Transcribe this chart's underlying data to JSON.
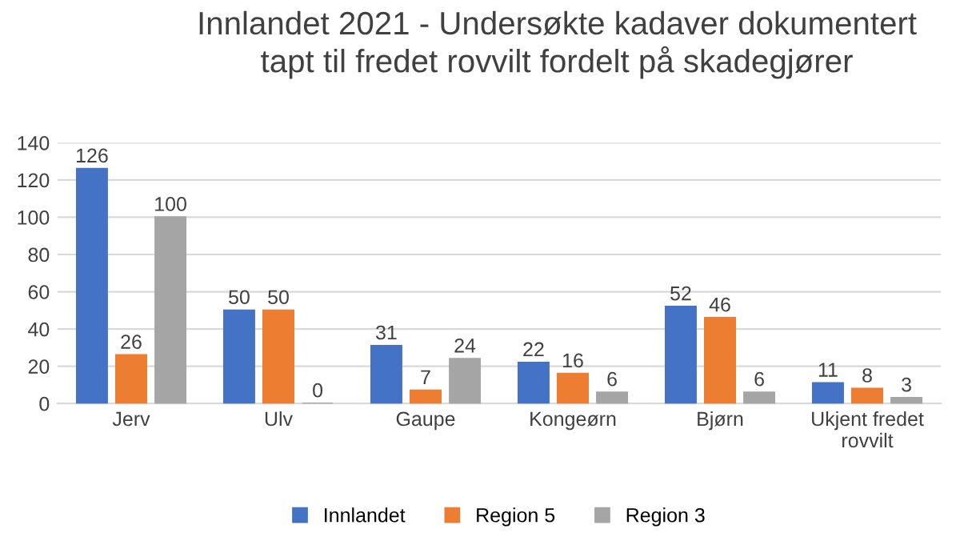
{
  "chart_data": {
    "type": "bar",
    "title": "Innlandet 2021 - Undersøkte kadaver dokumentert\ntapt til fredet rovvilt fordelt på skadegjører",
    "categories": [
      "Jerv",
      "Ulv",
      "Gaupe",
      "Kongeørn",
      "Bjørn",
      "Ukjent fredet\nrovvilt"
    ],
    "series": [
      {
        "name": "Innlandet",
        "color": "#4472c4",
        "values": [
          126,
          50,
          31,
          22,
          52,
          11
        ]
      },
      {
        "name": "Region 5",
        "color": "#ed7d31",
        "values": [
          26,
          50,
          7,
          16,
          46,
          8
        ]
      },
      {
        "name": "Region 3",
        "color": "#a5a5a5",
        "values": [
          100,
          0,
          24,
          6,
          6,
          3
        ]
      }
    ],
    "ylim": [
      0,
      140
    ],
    "yticks": [
      0,
      20,
      40,
      60,
      80,
      100,
      120,
      140
    ],
    "grid": "y",
    "legend": "bottom",
    "data_labels": true
  }
}
